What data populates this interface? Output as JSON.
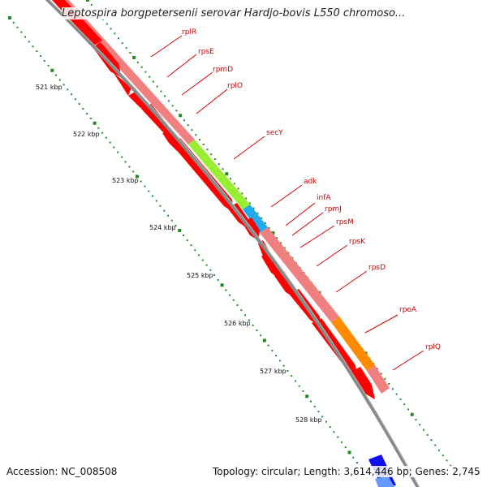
{
  "title": "Leptospira borgpetersenii serovar Hardjo-bovis L550 chromoso...",
  "footer": {
    "accession": "Accession: NC_008508",
    "stats": "Topology: circular; Length: 3,614,446 bp; Genes: 2,745"
  },
  "ticks": [
    "521 kbp",
    "522 kbp",
    "523 kbp",
    "524 kbp",
    "525 kbp",
    "526 kbp",
    "527 kbp",
    "528 kbp"
  ],
  "genes": [
    "rplR",
    "rpsE",
    "rpmD",
    "rplO",
    "secY",
    "adk",
    "infA",
    "rpmJ",
    "rpsM",
    "rpsK",
    "rpsD",
    "rpoA",
    "rplQ"
  ],
  "colors": {
    "cds": "#ff0000",
    "ribosomal": "#f08080",
    "secY": "#99ee33",
    "adk": "#22aaee",
    "rpoA": "#ff8c00",
    "backbone": "#888888",
    "ticks": "#228b22",
    "label": "#d40000"
  }
}
